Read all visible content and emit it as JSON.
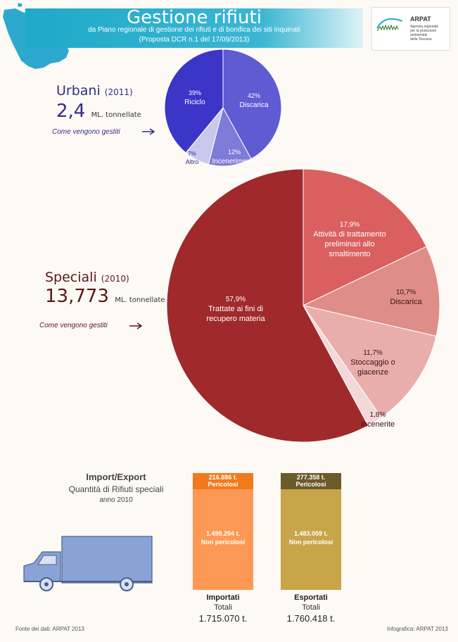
{
  "header": {
    "title": "Gestione rifiuti",
    "subtitle_line1": "da Piano regionale di gestione dei rifiuti e di bonifica dei siti inquinati",
    "subtitle_line2": "(Proposta DCR n.1 del 17/09/2013)",
    "color_start": "#1ea9c9",
    "color_end": "#dff3f7"
  },
  "logo": {
    "name": "ARPAT",
    "line1": "Agenzia regionale",
    "line2": "per la protezione ambientale",
    "line3": "della Toscana"
  },
  "urbani": {
    "title": "Urbani",
    "year": "(2011)",
    "value": "2,4",
    "unit": "ML. tonnellate",
    "how": "Come vengono gestiti"
  },
  "speciali": {
    "title": "Speciali",
    "year": "(2010)",
    "value": "13,773",
    "unit": "ML. tonnellate",
    "how": "Come vengono gestiti"
  },
  "chart_data": [
    {
      "type": "pie",
      "slices": [
        {
          "label": "Discarica",
          "value": 42,
          "value_text": "42%",
          "color": "#5f5bd3"
        },
        {
          "label": "Incenerimento con recupero energia",
          "value": 12,
          "value_text": "12%",
          "color": "#7f7bd8"
        },
        {
          "label": "Altro",
          "value": 7,
          "value_text": "7%",
          "color": "#c9c8ec"
        },
        {
          "label": "Riciclo",
          "value": 39,
          "value_text": "39%",
          "color": "#3b35c8"
        }
      ]
    },
    {
      "type": "pie",
      "slices": [
        {
          "label": "Attività di trattamento preliminari allo smaltimento",
          "value": 17.9,
          "value_text": "17,9%",
          "color": "#d9605f"
        },
        {
          "label": "Discarica",
          "value": 10.7,
          "value_text": "10,7%",
          "color": "#df8d88"
        },
        {
          "label": "Stoccaggio o giacenze",
          "value": 11.7,
          "value_text": "11,7%",
          "color": "#e9aeab"
        },
        {
          "label": "Incenerite",
          "value": 1.8,
          "value_text": "1,8%",
          "color": "#f2d8d8"
        },
        {
          "label": "Trattate ai fini di recupero materia",
          "value": 57.9,
          "value_text": "57,9%",
          "color": "#a0292b"
        }
      ]
    }
  ],
  "import_export": {
    "title": "Import/Export",
    "subtitle": "Quantità di Rifiuti speciali",
    "year": "anno 2010",
    "importati": {
      "pericolosi_value": "216.886 t.",
      "pericolosi_label": "Pericolosi",
      "non_pericolosi_value": "1.498.204 t.",
      "non_pericolosi_label": "Non pericolosi",
      "label": "Importati",
      "totali_label": "Totali",
      "total": "1.715.070 t."
    },
    "esportati": {
      "pericolosi_value": "277.358 t.",
      "pericolosi_label": "Pericolosi",
      "non_pericolosi_value": "1.483.059 t.",
      "non_pericolosi_label": "Non pericolosi",
      "label": "Esportati",
      "totali_label": "Totali",
      "total": "1.760.418 t."
    }
  },
  "footer": {
    "source": "Fonte dei dati: ARPAT 2013",
    "credit": "Infografica: ARPAT 2013"
  }
}
